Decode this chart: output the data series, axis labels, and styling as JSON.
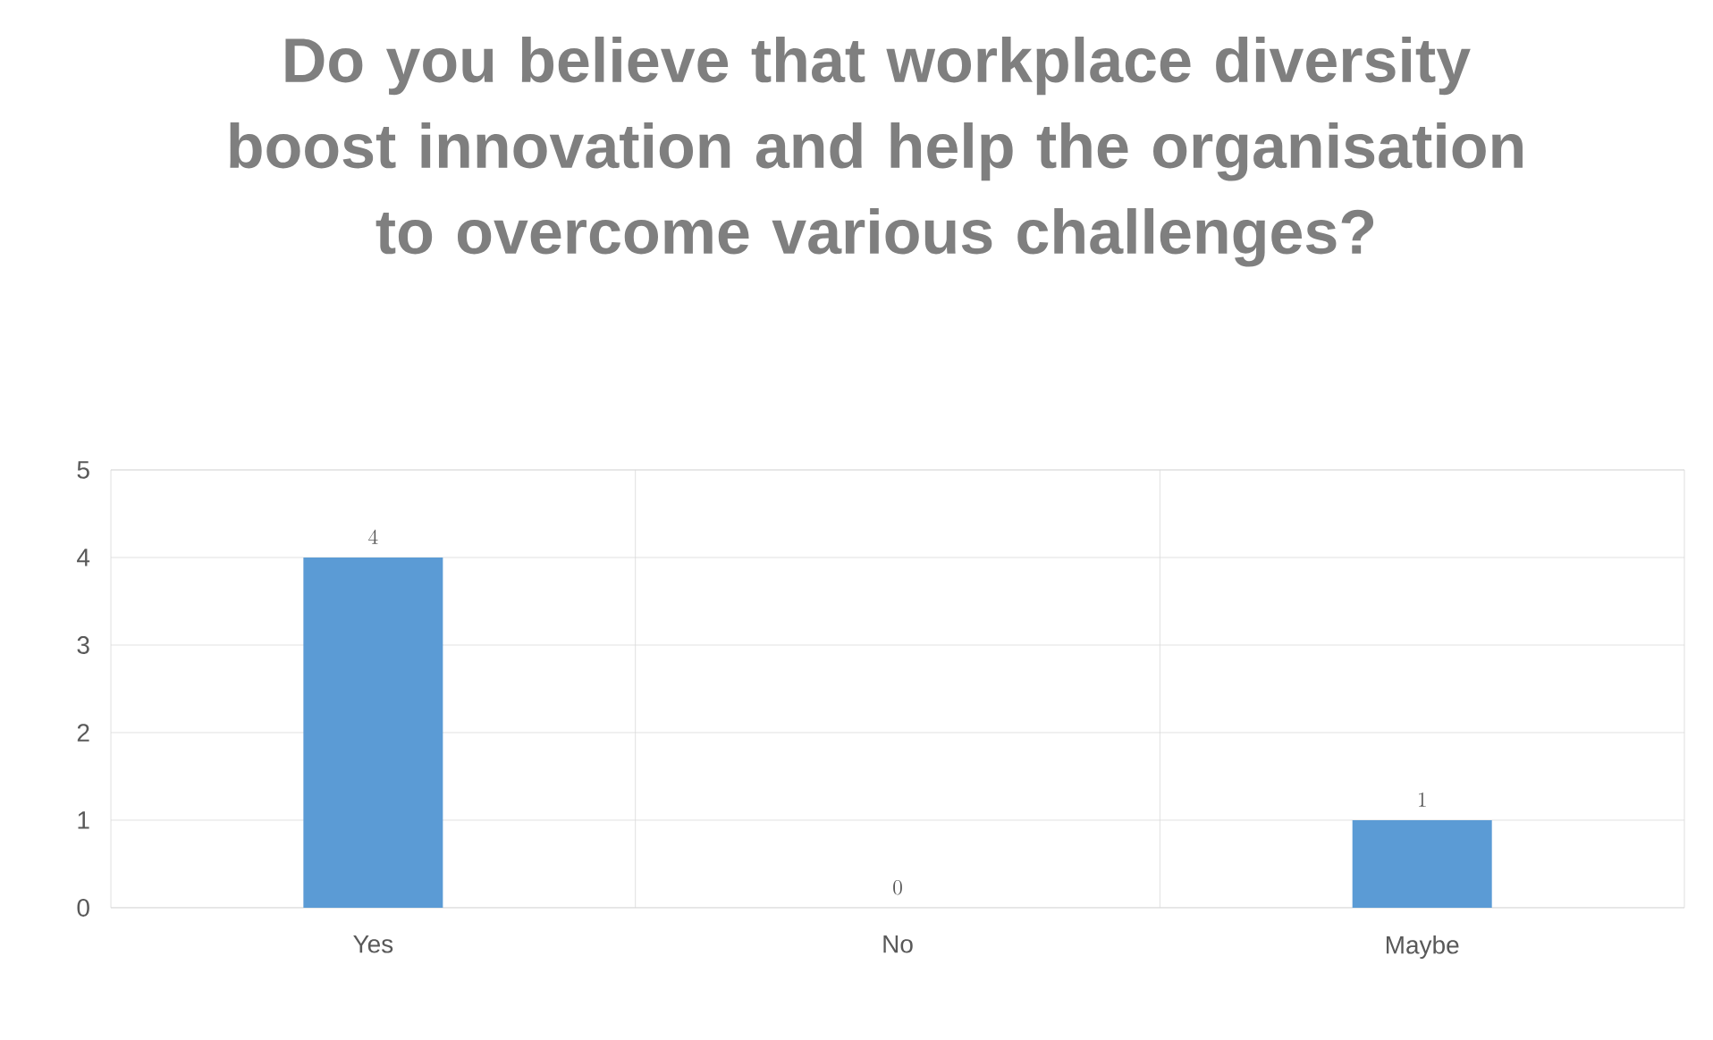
{
  "chart_data": {
    "type": "bar",
    "title": "Do you believe that workplace diversity boost innovation and help the organisation to overcome various challenges?",
    "categories": [
      "Yes",
      "No",
      "Maybe"
    ],
    "values": [
      4,
      0,
      1
    ],
    "color": "#5b9bd5",
    "ylim": [
      0,
      5
    ],
    "yticks": [
      0,
      1,
      2,
      3,
      4,
      5
    ],
    "grid": true,
    "data_labels": true
  }
}
